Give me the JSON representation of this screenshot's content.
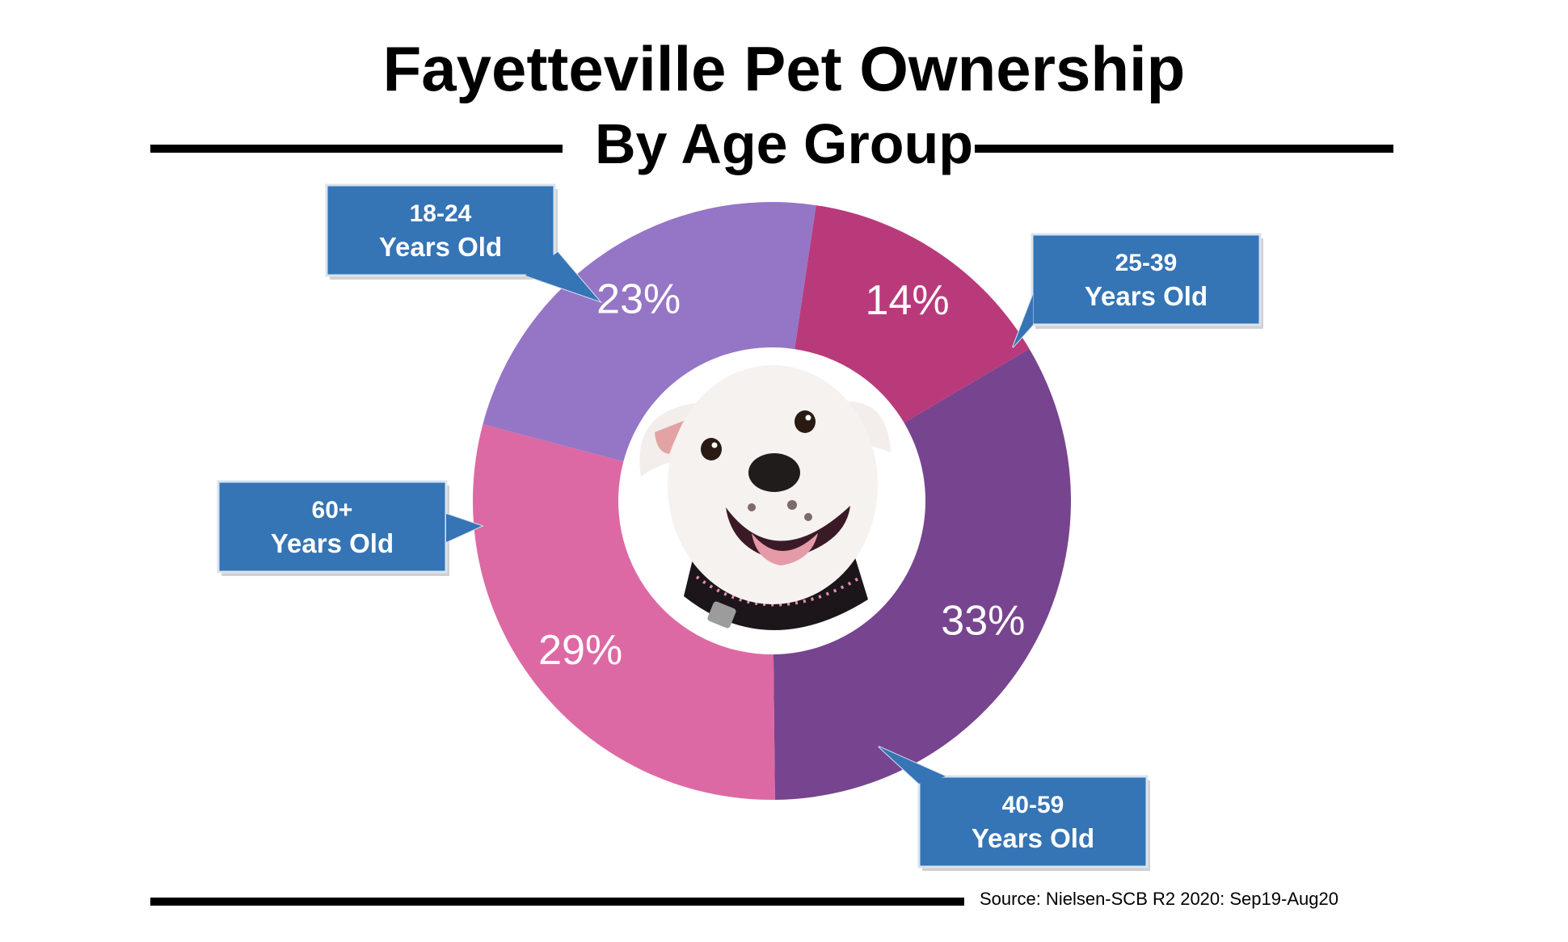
{
  "title": "Fayetteville Pet Ownership",
  "subtitle": "By Age Group",
  "source": "Source: Nielsen-SCB R2 2020: Sep19-Aug20",
  "center_image": "dog-photo",
  "callout_color": "#3574b5",
  "chart_data": {
    "type": "pie",
    "donut": true,
    "title": "Fayetteville Pet Ownership",
    "subtitle": "By Age Group",
    "unit": "%",
    "slices": [
      {
        "line1": "18-24",
        "line2": "Years Old",
        "value": 14,
        "color": "#b93a7a"
      },
      {
        "line1": "25-39",
        "line2": "Years Old",
        "value": 33,
        "color": "#77448f"
      },
      {
        "line1": "40-59",
        "line2": "Years Old",
        "value": 29,
        "color": "#dd69a4"
      },
      {
        "line1": "60+",
        "line2": "Years Old",
        "value": 23,
        "color": "#9575c6"
      }
    ]
  }
}
